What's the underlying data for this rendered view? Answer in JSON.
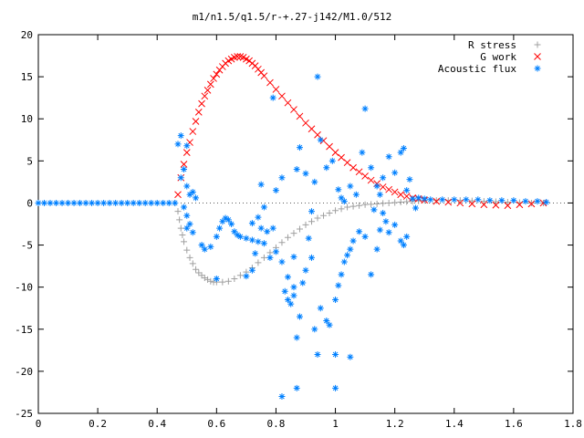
{
  "chart_data": {
    "type": "scatter",
    "title": "m1/n1.5/q1.5/r-+.27-j142/M1.0/512",
    "xlabel": "",
    "ylabel": "",
    "xlim": [
      0,
      1.8
    ],
    "ylim": [
      -25,
      20
    ],
    "grid": false,
    "legend_position": "top-right",
    "x_ticks": [
      "0",
      "0.2",
      "0.4",
      "0.6",
      "0.8",
      "1",
      "1.2",
      "1.4",
      "1.6",
      "1.8"
    ],
    "y_ticks": [
      "20",
      "15",
      "10",
      "5",
      "0",
      "-5",
      "-10",
      "-15",
      "-20",
      "-25"
    ],
    "series": [
      {
        "name": "R stress",
        "marker": "+",
        "color": "#a0a0a0",
        "points": [
          [
            0.46,
            0.0
          ],
          [
            0.47,
            -1.0
          ],
          [
            0.475,
            -2.0
          ],
          [
            0.48,
            -3.0
          ],
          [
            0.485,
            -3.8
          ],
          [
            0.49,
            -4.6
          ],
          [
            0.5,
            -5.6
          ],
          [
            0.51,
            -6.5
          ],
          [
            0.52,
            -7.2
          ],
          [
            0.53,
            -7.9
          ],
          [
            0.54,
            -8.3
          ],
          [
            0.55,
            -8.6
          ],
          [
            0.56,
            -8.9
          ],
          [
            0.57,
            -9.1
          ],
          [
            0.58,
            -9.3
          ],
          [
            0.59,
            -9.4
          ],
          [
            0.6,
            -9.4
          ],
          [
            0.62,
            -9.4
          ],
          [
            0.64,
            -9.3
          ],
          [
            0.66,
            -9.0
          ],
          [
            0.68,
            -8.6
          ],
          [
            0.7,
            -8.2
          ],
          [
            0.72,
            -7.7
          ],
          [
            0.74,
            -7.1
          ],
          [
            0.76,
            -6.5
          ],
          [
            0.78,
            -5.9
          ],
          [
            0.8,
            -5.3
          ],
          [
            0.82,
            -4.7
          ],
          [
            0.84,
            -4.1
          ],
          [
            0.86,
            -3.6
          ],
          [
            0.88,
            -3.1
          ],
          [
            0.9,
            -2.6
          ],
          [
            0.92,
            -2.2
          ],
          [
            0.94,
            -1.8
          ],
          [
            0.96,
            -1.5
          ],
          [
            0.98,
            -1.2
          ],
          [
            1.0,
            -0.9
          ],
          [
            1.02,
            -0.7
          ],
          [
            1.04,
            -0.5
          ],
          [
            1.06,
            -0.4
          ],
          [
            1.08,
            -0.3
          ],
          [
            1.1,
            -0.2
          ],
          [
            1.12,
            -0.15
          ],
          [
            1.14,
            -0.1
          ],
          [
            1.16,
            -0.05
          ],
          [
            1.18,
            0.0
          ],
          [
            1.2,
            0.05
          ],
          [
            1.22,
            0.1
          ],
          [
            1.24,
            0.15
          ],
          [
            1.26,
            0.2
          ],
          [
            1.28,
            0.25
          ],
          [
            1.3,
            0.3
          ],
          [
            1.34,
            0.3
          ],
          [
            1.38,
            0.3
          ],
          [
            1.42,
            0.3
          ],
          [
            1.46,
            0.25
          ],
          [
            1.5,
            0.2
          ],
          [
            1.54,
            0.15
          ],
          [
            1.58,
            0.1
          ],
          [
            1.62,
            0.05
          ],
          [
            1.66,
            0.0
          ],
          [
            1.7,
            0.0
          ]
        ]
      },
      {
        "name": "G work",
        "marker": "x",
        "color": "#ff0000",
        "points": [
          [
            0.47,
            1.0
          ],
          [
            0.48,
            3.0
          ],
          [
            0.49,
            4.6
          ],
          [
            0.5,
            6.0
          ],
          [
            0.51,
            7.2
          ],
          [
            0.52,
            8.5
          ],
          [
            0.53,
            9.7
          ],
          [
            0.54,
            10.8
          ],
          [
            0.55,
            11.8
          ],
          [
            0.56,
            12.7
          ],
          [
            0.57,
            13.4
          ],
          [
            0.58,
            14.1
          ],
          [
            0.59,
            14.8
          ],
          [
            0.6,
            15.3
          ],
          [
            0.61,
            15.8
          ],
          [
            0.62,
            16.2
          ],
          [
            0.63,
            16.6
          ],
          [
            0.64,
            16.9
          ],
          [
            0.65,
            17.1
          ],
          [
            0.66,
            17.3
          ],
          [
            0.67,
            17.4
          ],
          [
            0.68,
            17.4
          ],
          [
            0.69,
            17.3
          ],
          [
            0.7,
            17.1
          ],
          [
            0.71,
            16.9
          ],
          [
            0.72,
            16.6
          ],
          [
            0.73,
            16.3
          ],
          [
            0.74,
            15.9
          ],
          [
            0.75,
            15.5
          ],
          [
            0.76,
            15.1
          ],
          [
            0.78,
            14.3
          ],
          [
            0.8,
            13.5
          ],
          [
            0.82,
            12.7
          ],
          [
            0.84,
            11.9
          ],
          [
            0.86,
            11.1
          ],
          [
            0.88,
            10.3
          ],
          [
            0.9,
            9.5
          ],
          [
            0.92,
            8.8
          ],
          [
            0.94,
            8.1
          ],
          [
            0.96,
            7.4
          ],
          [
            0.98,
            6.7
          ],
          [
            1.0,
            6.0
          ],
          [
            1.02,
            5.4
          ],
          [
            1.04,
            4.8
          ],
          [
            1.06,
            4.2
          ],
          [
            1.08,
            3.7
          ],
          [
            1.1,
            3.2
          ],
          [
            1.12,
            2.7
          ],
          [
            1.14,
            2.3
          ],
          [
            1.16,
            1.9
          ],
          [
            1.18,
            1.6
          ],
          [
            1.2,
            1.3
          ],
          [
            1.22,
            1.0
          ],
          [
            1.24,
            0.8
          ],
          [
            1.26,
            0.6
          ],
          [
            1.28,
            0.5
          ],
          [
            1.3,
            0.35
          ],
          [
            1.34,
            0.2
          ],
          [
            1.38,
            0.1
          ],
          [
            1.42,
            0.0
          ],
          [
            1.46,
            -0.1
          ],
          [
            1.5,
            -0.2
          ],
          [
            1.54,
            -0.25
          ],
          [
            1.58,
            -0.3
          ],
          [
            1.62,
            -0.2
          ],
          [
            1.66,
            -0.1
          ],
          [
            1.7,
            0.0
          ]
        ]
      },
      {
        "name": "Acoustic flux",
        "marker": "*",
        "color": "#0080ff",
        "points": [
          [
            0.0,
            0.0
          ],
          [
            0.02,
            0.0
          ],
          [
            0.04,
            0.0
          ],
          [
            0.06,
            0.0
          ],
          [
            0.08,
            0.0
          ],
          [
            0.1,
            0.0
          ],
          [
            0.12,
            0.0
          ],
          [
            0.14,
            0.0
          ],
          [
            0.16,
            0.0
          ],
          [
            0.18,
            0.0
          ],
          [
            0.2,
            0.0
          ],
          [
            0.22,
            0.0
          ],
          [
            0.24,
            0.0
          ],
          [
            0.26,
            0.0
          ],
          [
            0.28,
            0.0
          ],
          [
            0.3,
            0.0
          ],
          [
            0.32,
            0.0
          ],
          [
            0.34,
            0.0
          ],
          [
            0.36,
            0.0
          ],
          [
            0.38,
            0.0
          ],
          [
            0.4,
            0.0
          ],
          [
            0.42,
            0.0
          ],
          [
            0.44,
            0.0
          ],
          [
            0.46,
            0.0
          ],
          [
            0.48,
            8.0
          ],
          [
            0.47,
            7.0
          ],
          [
            0.5,
            6.8
          ],
          [
            0.49,
            4.0
          ],
          [
            0.48,
            3.0
          ],
          [
            0.5,
            2.0
          ],
          [
            0.51,
            1.0
          ],
          [
            0.52,
            1.3
          ],
          [
            0.53,
            0.6
          ],
          [
            0.49,
            -0.5
          ],
          [
            0.5,
            -1.5
          ],
          [
            0.51,
            -2.5
          ],
          [
            0.5,
            -3.0
          ],
          [
            0.52,
            -3.5
          ],
          [
            0.55,
            -5.0
          ],
          [
            0.56,
            -5.5
          ],
          [
            0.58,
            -5.2
          ],
          [
            0.6,
            -4.0
          ],
          [
            0.61,
            -3.0
          ],
          [
            0.62,
            -2.2
          ],
          [
            0.63,
            -1.8
          ],
          [
            0.64,
            -2.0
          ],
          [
            0.65,
            -2.5
          ],
          [
            0.66,
            -3.4
          ],
          [
            0.67,
            -3.8
          ],
          [
            0.68,
            -4.0
          ],
          [
            0.7,
            -4.2
          ],
          [
            0.72,
            -4.4
          ],
          [
            0.74,
            -4.6
          ],
          [
            0.76,
            -4.8
          ],
          [
            0.7,
            -8.7
          ],
          [
            0.72,
            -8.0
          ],
          [
            0.73,
            -6.0
          ],
          [
            0.72,
            -2.4
          ],
          [
            0.74,
            -1.7
          ],
          [
            0.75,
            -3.0
          ],
          [
            0.75,
            2.2
          ],
          [
            0.76,
            -0.5
          ],
          [
            0.77,
            -3.4
          ],
          [
            0.78,
            -6.5
          ],
          [
            0.79,
            -3.0
          ],
          [
            0.8,
            1.5
          ],
          [
            0.8,
            -5.8
          ],
          [
            0.82,
            3.0
          ],
          [
            0.82,
            -7.0
          ],
          [
            0.83,
            -10.5
          ],
          [
            0.84,
            -11.5
          ],
          [
            0.84,
            -8.8
          ],
          [
            0.85,
            -12.0
          ],
          [
            0.86,
            -11.0
          ],
          [
            0.86,
            -10.0
          ],
          [
            0.86,
            -6.4
          ],
          [
            0.87,
            -16.0
          ],
          [
            0.87,
            4.0
          ],
          [
            0.88,
            -13.5
          ],
          [
            0.89,
            -9.5
          ],
          [
            0.9,
            -8.0
          ],
          [
            0.91,
            -4.2
          ],
          [
            0.92,
            -6.5
          ],
          [
            0.93,
            -15.0
          ],
          [
            0.95,
            -12.5
          ],
          [
            0.97,
            -14.0
          ],
          [
            0.98,
            -14.5
          ],
          [
            1.0,
            -22.0
          ],
          [
            1.0,
            -11.5
          ],
          [
            1.01,
            -9.8
          ],
          [
            1.02,
            -8.5
          ],
          [
            1.03,
            -7.0
          ],
          [
            1.04,
            -6.2
          ],
          [
            1.05,
            -5.5
          ],
          [
            1.06,
            -4.5
          ],
          [
            1.08,
            -3.4
          ],
          [
            1.1,
            -4.0
          ],
          [
            1.12,
            -8.5
          ],
          [
            1.14,
            -5.5
          ],
          [
            1.15,
            -3.2
          ],
          [
            1.16,
            -1.2
          ],
          [
            1.17,
            -2.2
          ],
          [
            1.18,
            -3.5
          ],
          [
            1.2,
            -2.6
          ],
          [
            1.22,
            -4.5
          ],
          [
            1.23,
            -5.0
          ],
          [
            1.24,
            -4.0
          ],
          [
            0.79,
            12.5
          ],
          [
            0.88,
            6.6
          ],
          [
            0.9,
            3.5
          ],
          [
            0.93,
            2.5
          ],
          [
            0.95,
            7.5
          ],
          [
            0.97,
            4.2
          ],
          [
            0.99,
            5.0
          ],
          [
            1.01,
            1.6
          ],
          [
            1.02,
            0.6
          ],
          [
            1.03,
            0.2
          ],
          [
            1.05,
            2.0
          ],
          [
            1.07,
            1.0
          ],
          [
            1.09,
            6.0
          ],
          [
            1.1,
            11.2
          ],
          [
            1.12,
            4.2
          ],
          [
            1.14,
            2.0
          ],
          [
            1.15,
            1.0
          ],
          [
            1.16,
            3.0
          ],
          [
            1.18,
            5.5
          ],
          [
            1.2,
            3.6
          ],
          [
            1.22,
            6.0
          ],
          [
            1.23,
            6.5
          ],
          [
            1.24,
            1.5
          ],
          [
            1.25,
            2.8
          ],
          [
            1.26,
            0.5
          ],
          [
            1.27,
            -0.6
          ],
          [
            1.28,
            0.6
          ],
          [
            1.3,
            0.5
          ],
          [
            0.94,
            15.0
          ],
          [
            1.0,
            -18.0
          ],
          [
            0.82,
            -23.0
          ],
          [
            0.87,
            -22.0
          ],
          [
            1.05,
            -18.3
          ],
          [
            0.94,
            -18.0
          ],
          [
            0.6,
            -9.0
          ],
          [
            0.92,
            -1.0
          ],
          [
            1.13,
            -0.8
          ],
          [
            1.32,
            0.4
          ],
          [
            1.36,
            0.4
          ],
          [
            1.4,
            0.4
          ],
          [
            1.44,
            0.4
          ],
          [
            1.48,
            0.4
          ],
          [
            1.52,
            0.3
          ],
          [
            1.56,
            0.3
          ],
          [
            1.6,
            0.3
          ],
          [
            1.64,
            0.2
          ],
          [
            1.68,
            0.2
          ],
          [
            1.71,
            0.1
          ]
        ]
      }
    ]
  }
}
